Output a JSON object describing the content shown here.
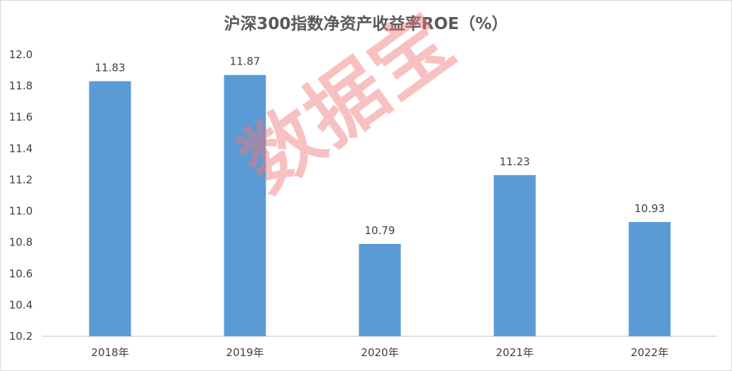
{
  "chart_data": {
    "type": "bar",
    "title": "沪深300指数净资产收益率ROE（%）",
    "categories": [
      "2018年",
      "2019年",
      "2020年",
      "2021年",
      "2022年"
    ],
    "values": [
      11.83,
      11.87,
      10.79,
      11.23,
      10.93
    ],
    "data_labels": [
      "11.83",
      "11.87",
      "10.79",
      "11.23",
      "10.93"
    ],
    "xlabel": "",
    "ylabel": "",
    "ylim": [
      10.2,
      12.0
    ],
    "yticks": [
      "10.2",
      "10.4",
      "10.6",
      "10.8",
      "11.0",
      "11.2",
      "11.4",
      "11.6",
      "11.8",
      "12.0"
    ],
    "grid": false,
    "legend": "none",
    "bar_color": "#5b9bd5"
  },
  "watermark": "数据宝"
}
